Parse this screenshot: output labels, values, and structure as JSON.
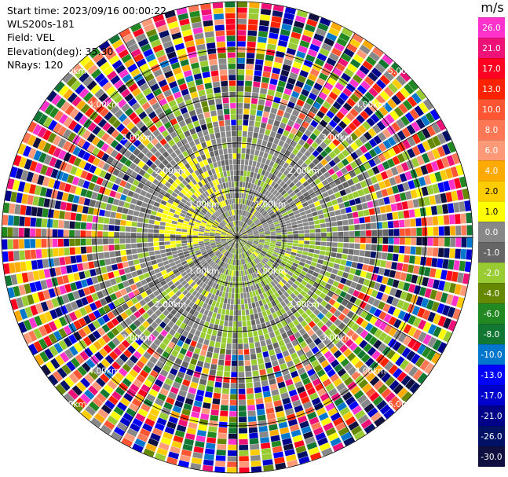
{
  "header": {
    "start_time": "Start time: 2023/09/16 00:00:22",
    "instrument": "WLS200s-181",
    "field": "Field: VEL",
    "elevation": "Elevation(deg): 35.30",
    "nrays": "NRays: 120"
  },
  "colorbar": {
    "unit": "m/s",
    "ticks": [
      "26.0",
      "21.0",
      "17.0",
      "13.0",
      "10.0",
      "8.0",
      "6.0",
      "4.0",
      "2.0",
      "1.0",
      "0.0",
      "-1.0",
      "-2.0",
      "-4.0",
      "-6.0",
      "-8.0",
      "-10.0",
      "-13.0",
      "-17.0",
      "-21.0",
      "-26.0",
      "-30.0"
    ],
    "colors": [
      "#ff33cc",
      "#ee1177",
      "#ff0022",
      "#ff2200",
      "#ff5533",
      "#ff7755",
      "#ff9977",
      "#ffaa00",
      "#ffcc00",
      "#ffff00",
      "#888888",
      "#666666",
      "#99cc33",
      "#668800",
      "#228822",
      "#117733",
      "#0077cc",
      "#0000ff",
      "#0000cc",
      "#000088",
      "#001166",
      "#101040"
    ]
  },
  "chart_data": {
    "type": "heatmap",
    "field": "VEL",
    "units": "m/s",
    "n_rays": 120,
    "elevation_deg": 35.3,
    "range_rings_km": [
      1.0,
      2.0,
      3.0,
      4.0,
      5.0
    ],
    "ring_labels": [
      "1.00km",
      "2.00km",
      "3.00km",
      "4.00km",
      "5.00km"
    ],
    "max_range_km": 5.0,
    "value_range": [
      -30.0,
      26.0
    ],
    "grid": true
  }
}
